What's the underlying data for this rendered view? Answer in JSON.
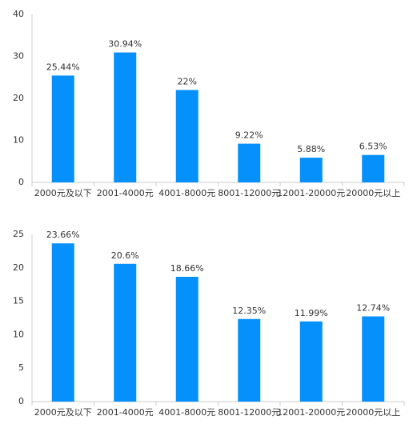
{
  "chart_data": [
    {
      "type": "bar",
      "categories": [
        "2000元及以下",
        "2001-4000元",
        "4001-8000元",
        "8001-12000元",
        "12001-20000元",
        "20000元以上"
      ],
      "values": [
        25.44,
        30.94,
        22,
        9.22,
        5.88,
        6.53
      ],
      "value_labels": [
        "25.44%",
        "30.94%",
        "22%",
        "9.22%",
        "5.88%",
        "6.53%"
      ],
      "color": "#0590fb",
      "ylim": [
        0,
        40
      ],
      "yticks": [
        0,
        10,
        20,
        30,
        40
      ],
      "grid": false
    },
    {
      "type": "bar",
      "categories": [
        "2000元及以下",
        "2001-4000元",
        "4001-8000元",
        "8001-12000元",
        "12001-20000元",
        "20000元以上"
      ],
      "values": [
        23.66,
        20.6,
        18.66,
        12.35,
        11.99,
        12.74
      ],
      "value_labels": [
        "23.66%",
        "20.6%",
        "18.66%",
        "12.35%",
        "11.99%",
        "12.74%"
      ],
      "color": "#0590fb",
      "ylim": [
        0,
        25
      ],
      "yticks": [
        0,
        5,
        10,
        15,
        20,
        25
      ],
      "grid": false
    }
  ]
}
